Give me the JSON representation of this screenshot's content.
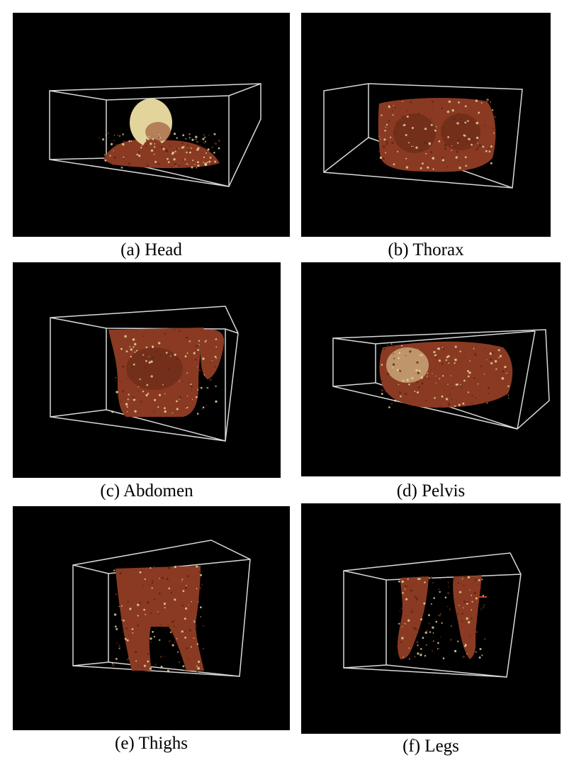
{
  "figure": {
    "panels": [
      {
        "id": "a",
        "caption": "(a) Head"
      },
      {
        "id": "b",
        "caption": "(b) Thorax"
      },
      {
        "id": "c",
        "caption": "(c) Abdomen"
      },
      {
        "id": "d",
        "caption": "(d) Pelvis"
      },
      {
        "id": "e",
        "caption": "(e) Thighs"
      },
      {
        "id": "f",
        "caption": "(f) Legs"
      }
    ],
    "colors": {
      "background": "#000000",
      "box_lines": "#d8d8d8",
      "tissue": "#8a3a22",
      "tissue_dark": "#5e2414",
      "bone_points": "#e6dca0"
    }
  }
}
